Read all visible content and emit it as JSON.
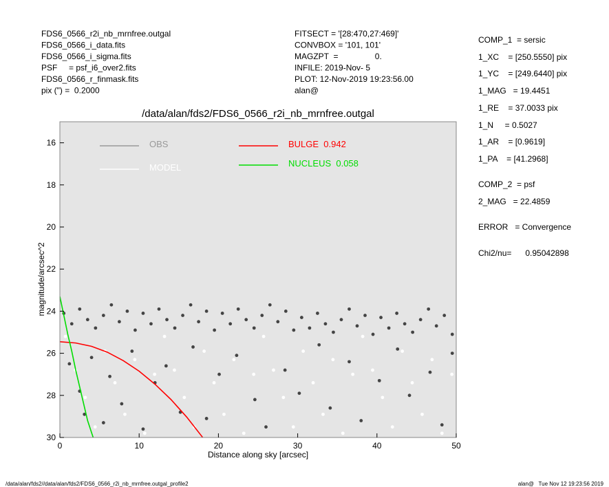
{
  "chart_data": {
    "type": "scatter",
    "title": "/data/alan/fds2/FDS6_0566_r2i_nb_mrnfree.outgal",
    "x_label": "Distance along sky [arcsec]",
    "y_label": "magnitude/arcsec^2",
    "xlim": [
      0,
      50
    ],
    "ylim": [
      15,
      30
    ],
    "y_inverted": true,
    "xticks": [
      0,
      10,
      20,
      30,
      40,
      50
    ],
    "yticks": [
      16,
      18,
      20,
      22,
      24,
      26,
      28,
      30
    ],
    "background": "#e5e5e5",
    "header_left": [
      "FDS6_0566_r2i_nb_mrnfree.outgal",
      "FDS6_0566_i_data.fits",
      "FDS6_0566_i_sigma.fits",
      "PSF     = psf_i6_over2.fits",
      "FDS6_0566_r_finmask.fits",
      "pix (\") =  0.2000"
    ],
    "header_middle": [
      "FITSECT = '[28:470,27:469]'",
      "CONVBOX = '101, 101'",
      "MAGZPT  =                0.",
      "INFILE: 2019-Nov- 5",
      "PLOT: 12-Nov-2019 19:23:56.00",
      "alan@"
    ],
    "fit_results": [
      "COMP_1  = sersic",
      "1_XC    = [250.5550] pix",
      "1_YC    = [249.6440] pix",
      "1_MAG   = 19.4451",
      "1_RE    = 37.0033 pix",
      "1_N     = 0.5027",
      "1_AR    = [0.9619]",
      "1_PA    = [41.2968]",
      "COMP_2  = psf",
      "2_MAG   = 22.4859",
      "ERROR   = Convergence",
      "Chi2/nu=      0.95042898"
    ],
    "footer_left": "/data/alan/fds2//data/alan/fds2/FDS6_0566_r2i_nb_mrnfree.outgal_profile2",
    "footer_right": "alan@   Tue Nov 12 19:23:56 2019",
    "series": [
      {
        "name": "OBS",
        "style": "points",
        "color": "#444444",
        "legend_color": "#999999",
        "x": [
          0.5,
          1.5,
          2.5,
          3.5,
          4.5,
          5.5,
          6.5,
          7.5,
          8.5,
          9.5,
          10.5,
          11.5,
          12.5,
          13.5,
          14.5,
          15.5,
          16.5,
          17.5,
          18.5,
          19.5,
          20.5,
          21.5,
          22.5,
          23.5,
          24.5,
          25.5,
          26.5,
          27.5,
          28.5,
          29.5,
          30.5,
          31.5,
          32.5,
          33.5,
          34.5,
          35.5,
          36.5,
          37.5,
          38.5,
          39.5,
          40.5,
          41.5,
          42.5,
          43.5,
          44.5,
          45.5,
          46.5,
          47.5,
          48.5,
          49.5,
          1.2,
          2.5,
          3.1,
          4.0,
          5.5,
          6.3,
          7.8,
          9.1,
          10.5,
          12.0,
          13.4,
          15.2,
          16.8,
          18.5,
          20.1,
          22.3,
          24.6,
          26.0,
          28.4,
          30.2,
          32.7,
          34.1,
          36.5,
          38.0,
          40.3,
          42.6,
          44.1,
          46.7,
          48.2,
          49.5
        ],
        "values": [
          24.1,
          24.6,
          23.9,
          24.4,
          24.8,
          24.2,
          23.7,
          24.5,
          24.0,
          24.9,
          24.1,
          24.6,
          23.9,
          24.4,
          24.8,
          24.2,
          23.7,
          24.5,
          24.0,
          24.9,
          24.1,
          24.6,
          23.9,
          24.4,
          24.8,
          24.2,
          23.7,
          24.5,
          24.0,
          24.9,
          24.3,
          24.8,
          24.1,
          24.6,
          25.0,
          24.4,
          23.9,
          24.7,
          24.2,
          25.1,
          24.3,
          24.8,
          24.1,
          24.6,
          25.0,
          24.4,
          23.9,
          24.7,
          24.2,
          25.1,
          26.5,
          27.8,
          28.9,
          26.2,
          29.3,
          27.1,
          28.4,
          25.9,
          29.6,
          27.4,
          26.6,
          28.8,
          25.7,
          29.1,
          27.0,
          26.1,
          28.2,
          29.5,
          26.8,
          27.9,
          25.6,
          28.6,
          26.4,
          29.2,
          27.3,
          25.8,
          28.0,
          26.9,
          29.4,
          26.0
        ]
      },
      {
        "name": "MODEL",
        "style": "points",
        "color": "#ffffff",
        "x": [
          0.7,
          1.95,
          3.2,
          4.45,
          5.7,
          6.95,
          8.2,
          9.45,
          10.7,
          11.95,
          13.2,
          14.45,
          15.7,
          16.95,
          18.2,
          19.45,
          20.7,
          21.95,
          23.2,
          24.45,
          25.7,
          26.95,
          28.2,
          29.45,
          30.7,
          31.95,
          33.2,
          34.45,
          35.7,
          36.95,
          38.2,
          39.45,
          40.7,
          41.95,
          43.2,
          44.45,
          45.7,
          46.95,
          48.2,
          49.45
        ],
        "values": [
          25.2,
          26.8,
          28.1,
          29.5,
          25.9,
          27.4,
          28.9,
          26.3,
          29.8,
          27.0,
          25.2,
          26.8,
          28.1,
          29.5,
          25.9,
          27.4,
          28.9,
          26.3,
          29.8,
          27.0,
          25.2,
          26.8,
          28.1,
          29.5,
          25.9,
          27.4,
          28.9,
          26.3,
          29.8,
          27.0,
          25.2,
          26.8,
          28.1,
          29.5,
          25.9,
          27.4,
          28.9,
          26.3,
          29.8,
          27.0
        ]
      },
      {
        "name": "BULGE  0.942",
        "style": "line",
        "color": "#ff0000",
        "x": [
          0,
          2,
          4,
          6,
          8,
          10,
          12,
          14,
          16,
          18
        ],
        "values": [
          25.45,
          25.51,
          25.67,
          25.95,
          26.35,
          26.85,
          27.47,
          28.19,
          29.03,
          29.99
        ]
      },
      {
        "name": "NUCLEUS  0.058",
        "style": "line",
        "color": "#00dd00",
        "x": [
          0,
          0.5,
          1,
          1.5,
          2,
          2.5,
          3,
          3.5,
          4.2
        ],
        "values": [
          23.3,
          24.2,
          25.1,
          25.9,
          26.8,
          27.6,
          28.4,
          29.2,
          30
        ]
      }
    ]
  }
}
